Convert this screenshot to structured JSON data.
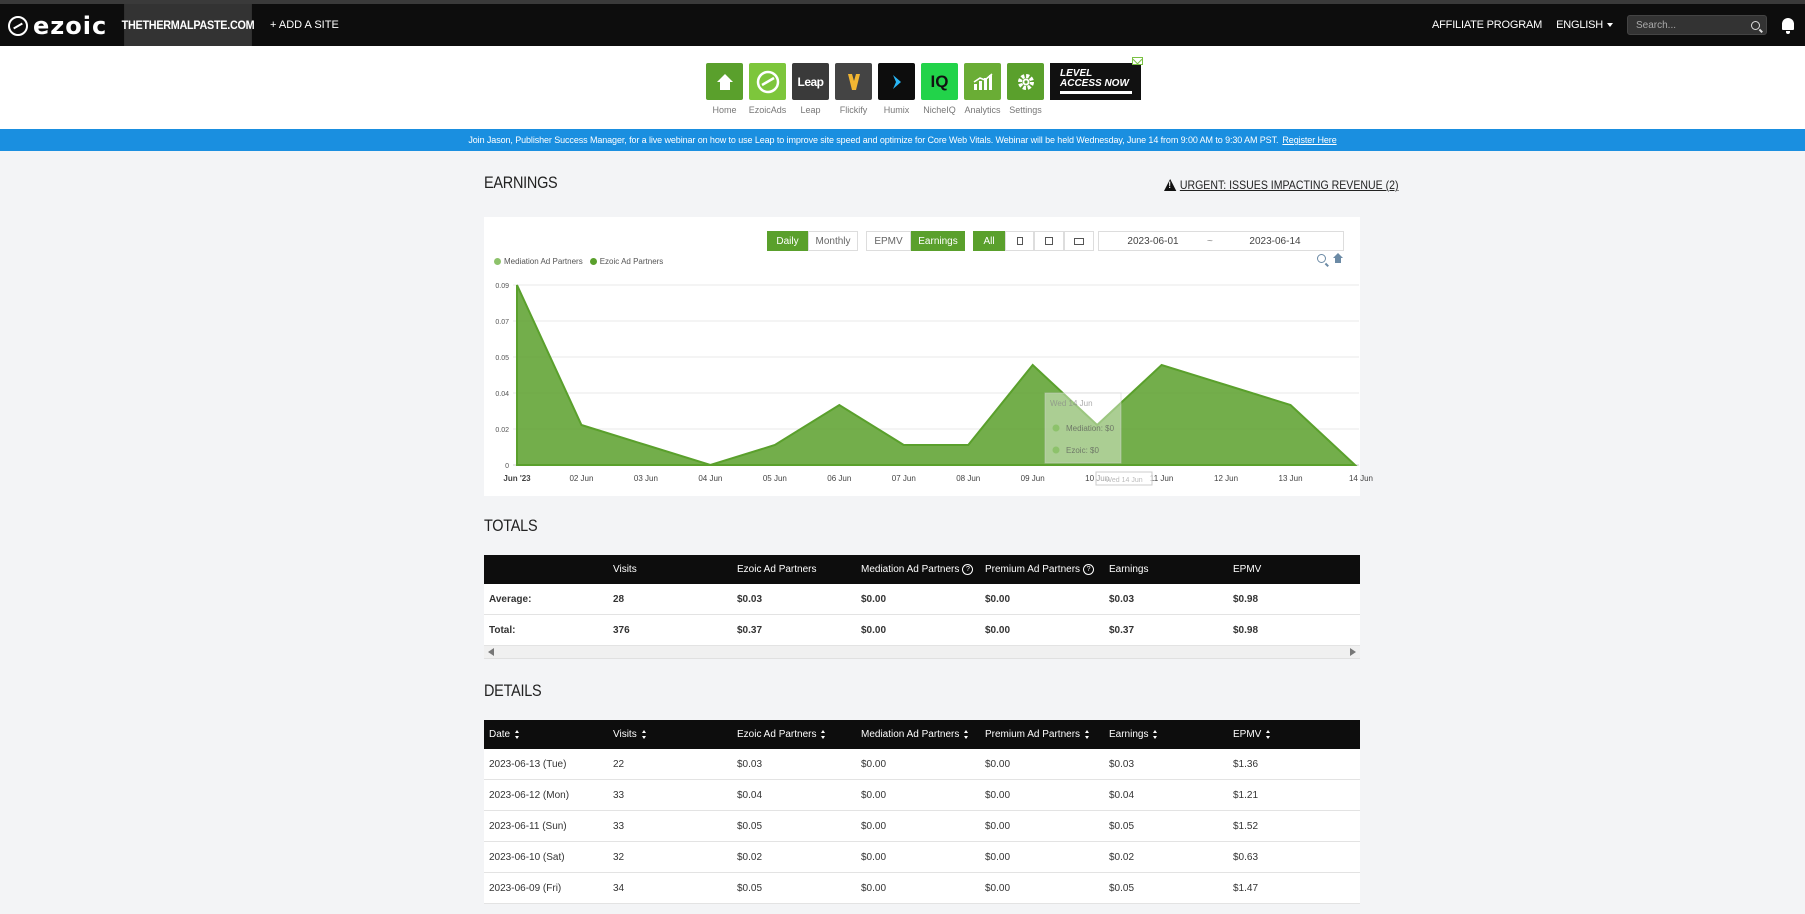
{
  "nav": {
    "logo": "ezoic",
    "site": "THETHERMALPASTE.COM",
    "add_site": "+ ADD A SITE",
    "affiliate": "AFFILIATE PROGRAM",
    "language": "ENGLISH",
    "search_placeholder": "Search..."
  },
  "apps": [
    {
      "label": "Home",
      "color": "#5aa02c",
      "icon": "home-icon"
    },
    {
      "label": "EzoicAds",
      "color": "#7dc63b",
      "icon": "ezoicads-icon"
    },
    {
      "label": "Leap",
      "color": "#3a3a3a",
      "icon": "leap-icon",
      "text": "Leap"
    },
    {
      "label": "Flickify",
      "color": "#444444",
      "icon": "flickify-icon"
    },
    {
      "label": "Humix",
      "color": "#0d0d0d",
      "icon": "humix-icon"
    },
    {
      "label": "NicheIQ",
      "color": "#22d34a",
      "icon": "nicheiq-icon",
      "text": "IQ"
    },
    {
      "label": "Analytics",
      "color": "#6aad35",
      "icon": "analytics-icon"
    },
    {
      "label": "Settings",
      "color": "#5aa02c",
      "icon": "settings-icon"
    }
  ],
  "level_access": {
    "line1": "LEVEL",
    "line2": "ACCESS NOW"
  },
  "banner": {
    "text": "Join Jason, Publisher Success Manager, for a live webinar on how to use Leap to improve site speed and optimize for Core Web Vitals. Webinar will be held Wednesday, June 14 from 9:00 AM to 9:30 AM PST.",
    "link": "Register Here"
  },
  "earnings": {
    "title": "EARNINGS",
    "urgent": "URGENT: ISSUES IMPACTING REVENUE (2)",
    "buttons": {
      "daily": "Daily",
      "monthly": "Monthly",
      "epmv": "EPMV",
      "earnings": "Earnings",
      "all": "All"
    },
    "date_from": "2023-06-01",
    "date_sep": "~",
    "date_to": "2023-06-14",
    "tooltip": {
      "date": "Wed 14 Jun",
      "mediation": "Mediation: $0",
      "ezoic": "Ezoic: $0"
    },
    "crosshair_label": "Wed 14 Jun"
  },
  "chart_data": {
    "type": "area",
    "x": [
      "Jun '23",
      "02 Jun",
      "03 Jun",
      "04 Jun",
      "05 Jun",
      "06 Jun",
      "07 Jun",
      "08 Jun",
      "09 Jun",
      "10 Jun",
      "11 Jun",
      "12 Jun",
      "13 Jun",
      "14 Jun"
    ],
    "series": [
      {
        "name": "Mediation Ad Partners",
        "color": "#8dc26b",
        "values": [
          0,
          0,
          0,
          0,
          0,
          0,
          0,
          0,
          0,
          0,
          0,
          0,
          0,
          0
        ]
      },
      {
        "name": "Ezoic Ad Partners",
        "color": "#5aa02c",
        "values": [
          0.09,
          0.02,
          0.01,
          0.0,
          0.01,
          0.03,
          0.01,
          0.01,
          0.05,
          0.02,
          0.05,
          0.04,
          0.03,
          0.0
        ]
      }
    ],
    "y_ticks": [
      "0",
      "0.02",
      "0.04",
      "0.05",
      "0.07",
      "0.09"
    ],
    "y_tick_values": [
      0,
      0.018,
      0.036,
      0.054,
      0.072,
      0.09
    ],
    "ylim": [
      0,
      0.09
    ],
    "grid": true,
    "legend": "top-left"
  },
  "totals": {
    "title": "TOTALS",
    "headers": [
      "",
      "Visits",
      "Ezoic Ad Partners",
      "Mediation Ad Partners",
      "Premium Ad Partners",
      "Earnings",
      "EPMV"
    ],
    "rows": [
      [
        "Average:",
        "28",
        "$0.03",
        "$0.00",
        "$0.00",
        "$0.03",
        "$0.98"
      ],
      [
        "Total:",
        "376",
        "$0.37",
        "$0.00",
        "$0.00",
        "$0.37",
        "$0.98"
      ]
    ]
  },
  "details": {
    "title": "DETAILS",
    "headers": [
      "Date",
      "Visits",
      "Ezoic Ad Partners",
      "Mediation Ad Partners",
      "Premium Ad Partners",
      "Earnings",
      "EPMV"
    ],
    "rows": [
      [
        "2023-06-13 (Tue)",
        "22",
        "$0.03",
        "$0.00",
        "$0.00",
        "$0.03",
        "$1.36"
      ],
      [
        "2023-06-12 (Mon)",
        "33",
        "$0.04",
        "$0.00",
        "$0.00",
        "$0.04",
        "$1.21"
      ],
      [
        "2023-06-11 (Sun)",
        "33",
        "$0.05",
        "$0.00",
        "$0.00",
        "$0.05",
        "$1.52"
      ],
      [
        "2023-06-10 (Sat)",
        "32",
        "$0.02",
        "$0.00",
        "$0.00",
        "$0.02",
        "$0.63"
      ],
      [
        "2023-06-09 (Fri)",
        "34",
        "$0.05",
        "$0.00",
        "$0.00",
        "$0.05",
        "$1.47"
      ]
    ]
  }
}
